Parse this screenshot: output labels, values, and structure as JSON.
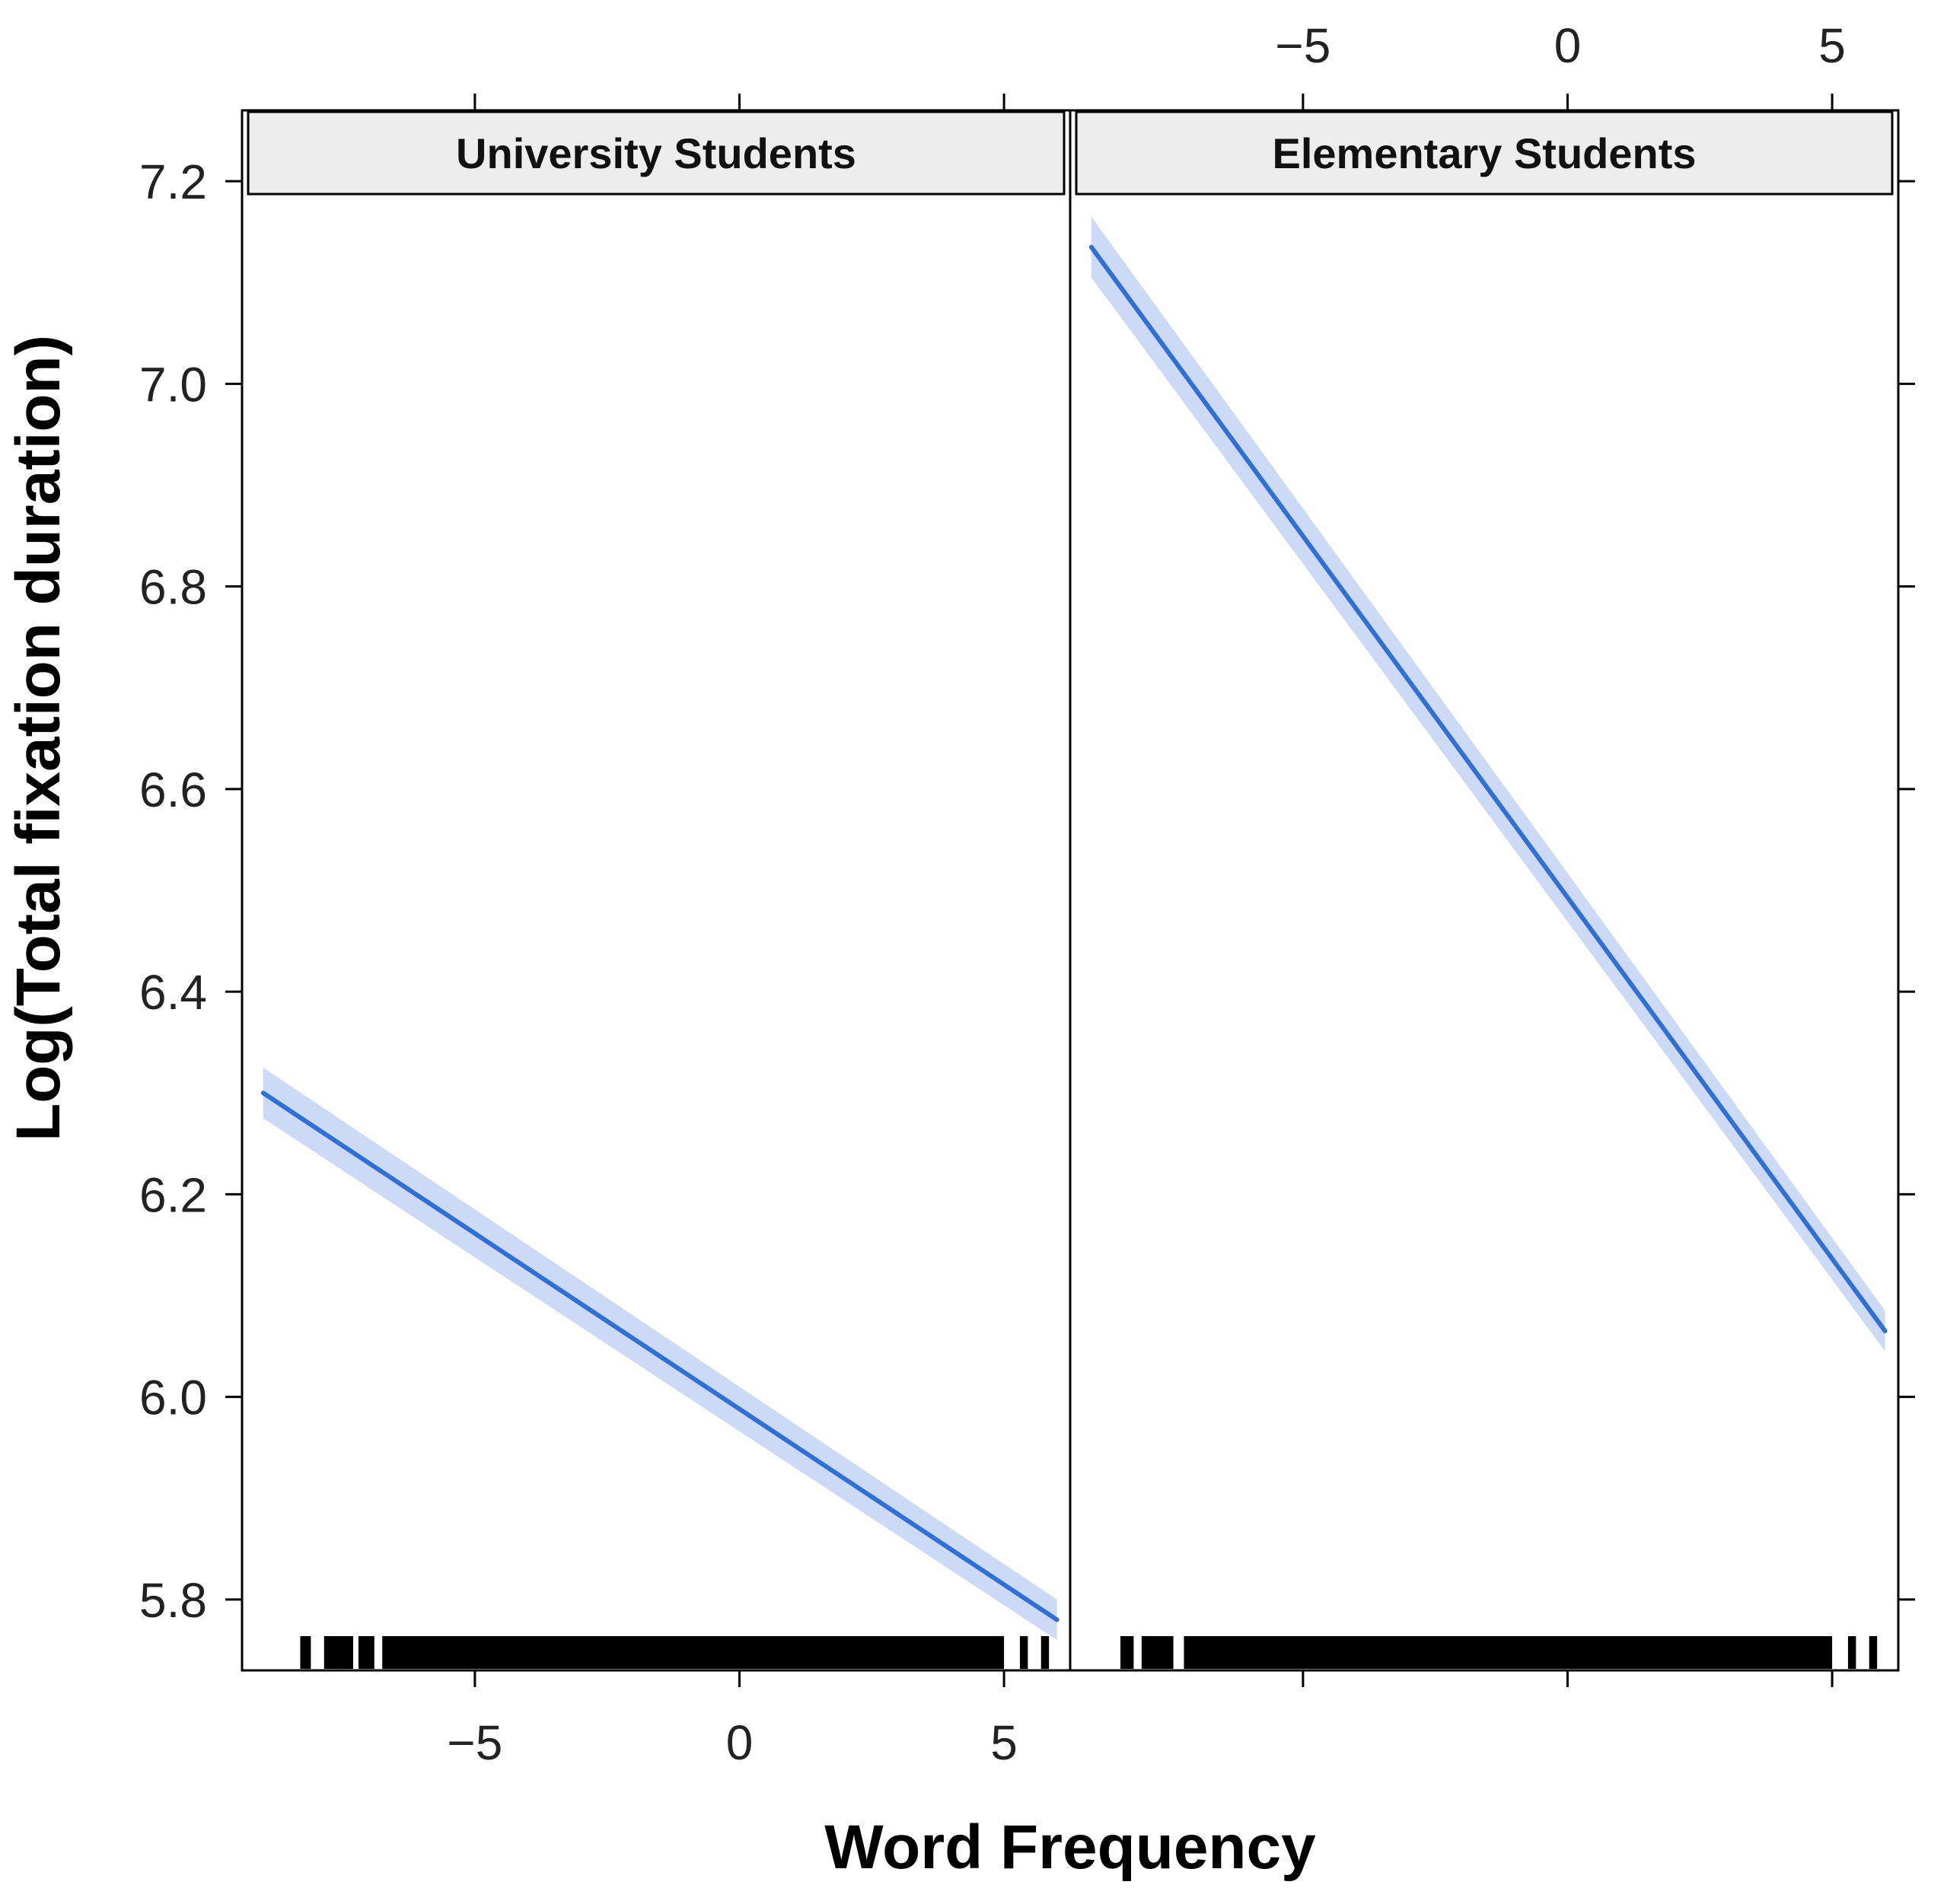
{
  "chart_data": {
    "type": "line",
    "xlabel": "Word Frequency",
    "ylabel": "Log(Total fixation duration)",
    "ylim": [
      5.73,
      7.27
    ],
    "yticks": [
      5.8,
      6.0,
      6.2,
      6.4,
      6.6,
      6.8,
      7.0,
      7.2
    ],
    "ytick_labels": [
      "5.8",
      "6.0",
      "6.2",
      "6.4",
      "6.6",
      "6.8",
      "7.0",
      "7.2"
    ],
    "xticks": [
      -5,
      0,
      5
    ],
    "xtick_labels": [
      "−5",
      "0",
      "5"
    ],
    "grid": false,
    "line_color": "#2f6fd6",
    "band_color": "#c9d8f5",
    "rug_color": "#000000",
    "strip_color": "#ededed",
    "panels": [
      {
        "title": "University Students",
        "xlim": [
          -9.4,
          6.25
        ],
        "x": [
          -9.0,
          6.0
        ],
        "y": [
          6.3,
          5.78
        ],
        "band_lower": [
          6.275,
          5.76
        ],
        "band_upper": [
          6.325,
          5.8
        ],
        "rug_segments": [
          [
            -8.3,
            -8.1
          ],
          [
            -7.85,
            -7.3
          ],
          [
            -7.2,
            -6.9
          ],
          [
            -6.75,
            5.0
          ],
          [
            5.3,
            5.45
          ],
          [
            5.7,
            5.85
          ]
        ]
      },
      {
        "title": "Elementary Students",
        "xlim": [
          -9.4,
          6.25
        ],
        "x": [
          -9.0,
          6.0
        ],
        "y": [
          7.135,
          6.065
        ],
        "band_lower": [
          7.105,
          6.045
        ],
        "band_upper": [
          7.165,
          6.085
        ],
        "rug_segments": [
          [
            -8.45,
            -8.2
          ],
          [
            -8.05,
            -7.45
          ],
          [
            -7.25,
            5.0
          ],
          [
            5.3,
            5.45
          ],
          [
            5.7,
            5.85
          ]
        ]
      }
    ]
  }
}
